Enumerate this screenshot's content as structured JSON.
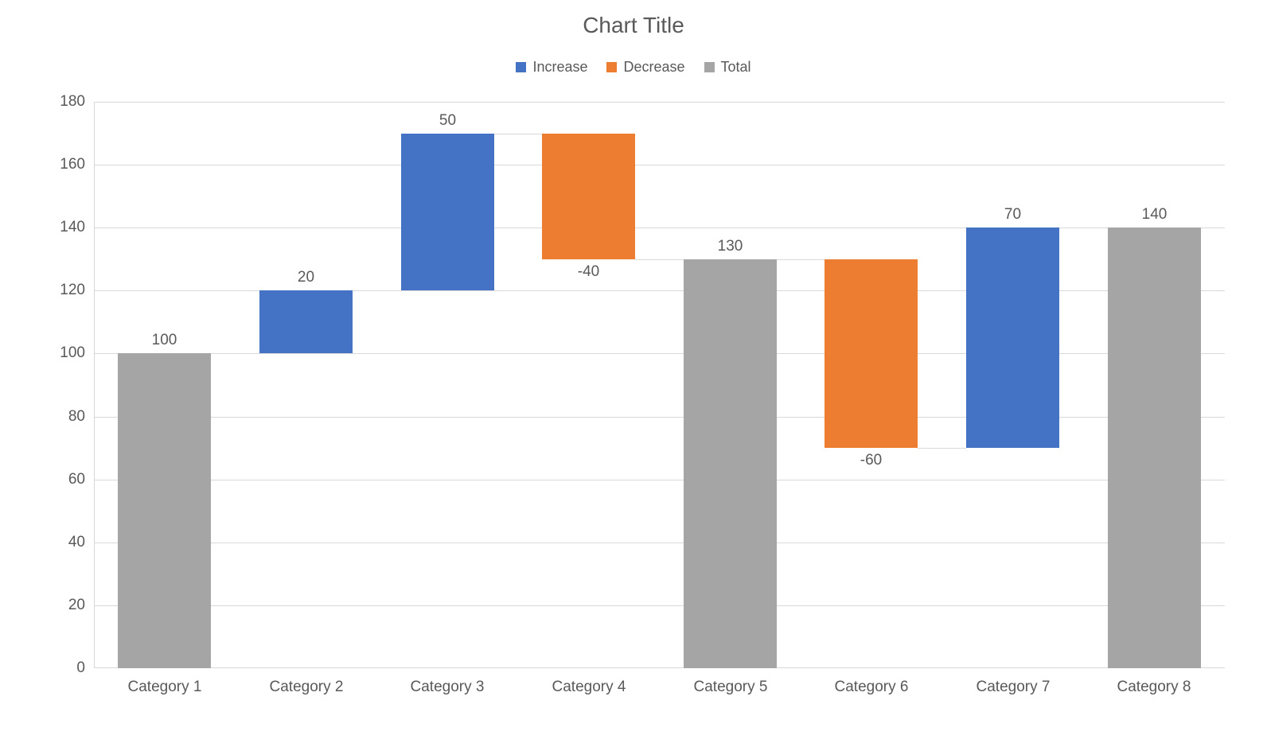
{
  "chart_data": {
    "type": "bar",
    "subtype": "waterfall",
    "title": "Chart Title",
    "xlabel": "",
    "ylabel": "",
    "ylim": [
      0,
      180
    ],
    "yticks": [
      0,
      20,
      40,
      60,
      80,
      100,
      120,
      140,
      160,
      180
    ],
    "grid": true,
    "legend_position": "top-center",
    "categories": [
      "Category 1",
      "Category 2",
      "Category 3",
      "Category 4",
      "Category 5",
      "Category 6",
      "Category 7",
      "Category 8"
    ],
    "bars": [
      {
        "category": "Category 1",
        "type": "total",
        "start": 0,
        "end": 100,
        "value": 100,
        "label": "100"
      },
      {
        "category": "Category 2",
        "type": "increase",
        "start": 100,
        "end": 120,
        "value": 20,
        "label": "20"
      },
      {
        "category": "Category 3",
        "type": "increase",
        "start": 120,
        "end": 170,
        "value": 50,
        "label": "50"
      },
      {
        "category": "Category 4",
        "type": "decrease",
        "start": 170,
        "end": 130,
        "value": -40,
        "label": "-40"
      },
      {
        "category": "Category 5",
        "type": "total",
        "start": 0,
        "end": 130,
        "value": 130,
        "label": "130"
      },
      {
        "category": "Category 6",
        "type": "decrease",
        "start": 130,
        "end": 70,
        "value": -60,
        "label": "-60"
      },
      {
        "category": "Category 7",
        "type": "increase",
        "start": 70,
        "end": 140,
        "value": 70,
        "label": "70"
      },
      {
        "category": "Category 8",
        "type": "total",
        "start": 0,
        "end": 140,
        "value": 140,
        "label": "140"
      }
    ],
    "legend": [
      {
        "label": "Increase",
        "type": "increase",
        "color": "#4472C4"
      },
      {
        "label": "Decrease",
        "type": "decrease",
        "color": "#ED7D31"
      },
      {
        "label": "Total",
        "type": "total",
        "color": "#A5A5A5"
      }
    ],
    "colors": {
      "increase": "#4472C4",
      "decrease": "#ED7D31",
      "total": "#A5A5A5",
      "gridline": "#D9D9D9",
      "axis_line": "#D9D9D9",
      "text": "#595959",
      "background": "#FFFFFF"
    }
  }
}
